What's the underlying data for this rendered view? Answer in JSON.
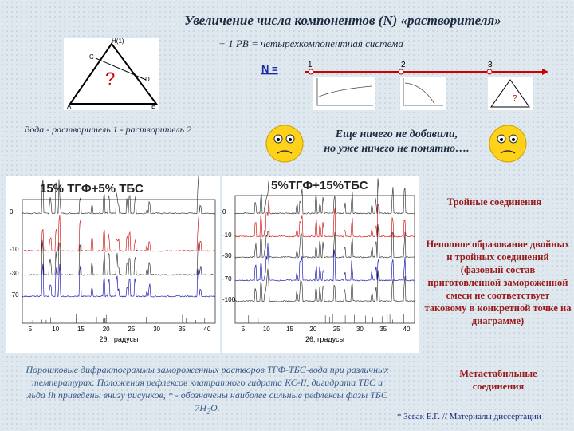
{
  "header": {
    "title": "Увеличение числа компонентов (N) «растворителя»",
    "subtitle": "+ 1 РВ = четырехкомпонентная система"
  },
  "triangle": {
    "top": "Н(1)",
    "left_side": "С",
    "center": "?",
    "right_side": "D",
    "bottom_left": "А",
    "bottom_right": "В",
    "caption": "Вода - растворитель 1 - растворитель 2"
  },
  "n_axis": {
    "label": "N =",
    "steps": [
      "1",
      "2",
      "3"
    ],
    "mini_center": "?"
  },
  "comment": {
    "line1": "Еще ничего не добавили,",
    "line2": "но уже ничего не понятно…."
  },
  "panels": [
    {
      "title": "15% ТГФ+5% ТБС",
      "y_labels": [
        "0",
        "-10",
        "-30",
        "-70"
      ],
      "x_labels": [
        "5",
        "10",
        "15",
        "20",
        "25",
        "30",
        "35",
        "40"
      ],
      "x_title": "2θ, градусы"
    },
    {
      "title": "5%ТГФ+15%ТБС",
      "y_labels": [
        "0",
        "-10",
        "-30",
        "-70",
        "-100"
      ],
      "x_labels": [
        "5",
        "10",
        "15",
        "20",
        "25",
        "30",
        "35",
        "40"
      ],
      "x_title": "2θ, градусы"
    }
  ],
  "notes": [
    "Тройные соединения",
    "Неполное образование двойных и тройных соединений (фазовый состав приготовленной замороженной смеси не соответствует таковому в конкретной точке на диаграмме)",
    "Метастабильные соединения"
  ],
  "caption": {
    "text": "Порошковые дифрактограммы замороженных растворов ТГФ-ТБС-вода при различных температурах. Положения рефлексов клатратного гидрата КС-II, дигидрата ТБС и льда Ih приведены внизу рисунков, * - обозначены наиболее сильные рефлексы фазы ТБС 7H",
    "sub": "2",
    "end": "O."
  },
  "reference": "* Зевак Е.Г. // Материалы диссертации"
}
